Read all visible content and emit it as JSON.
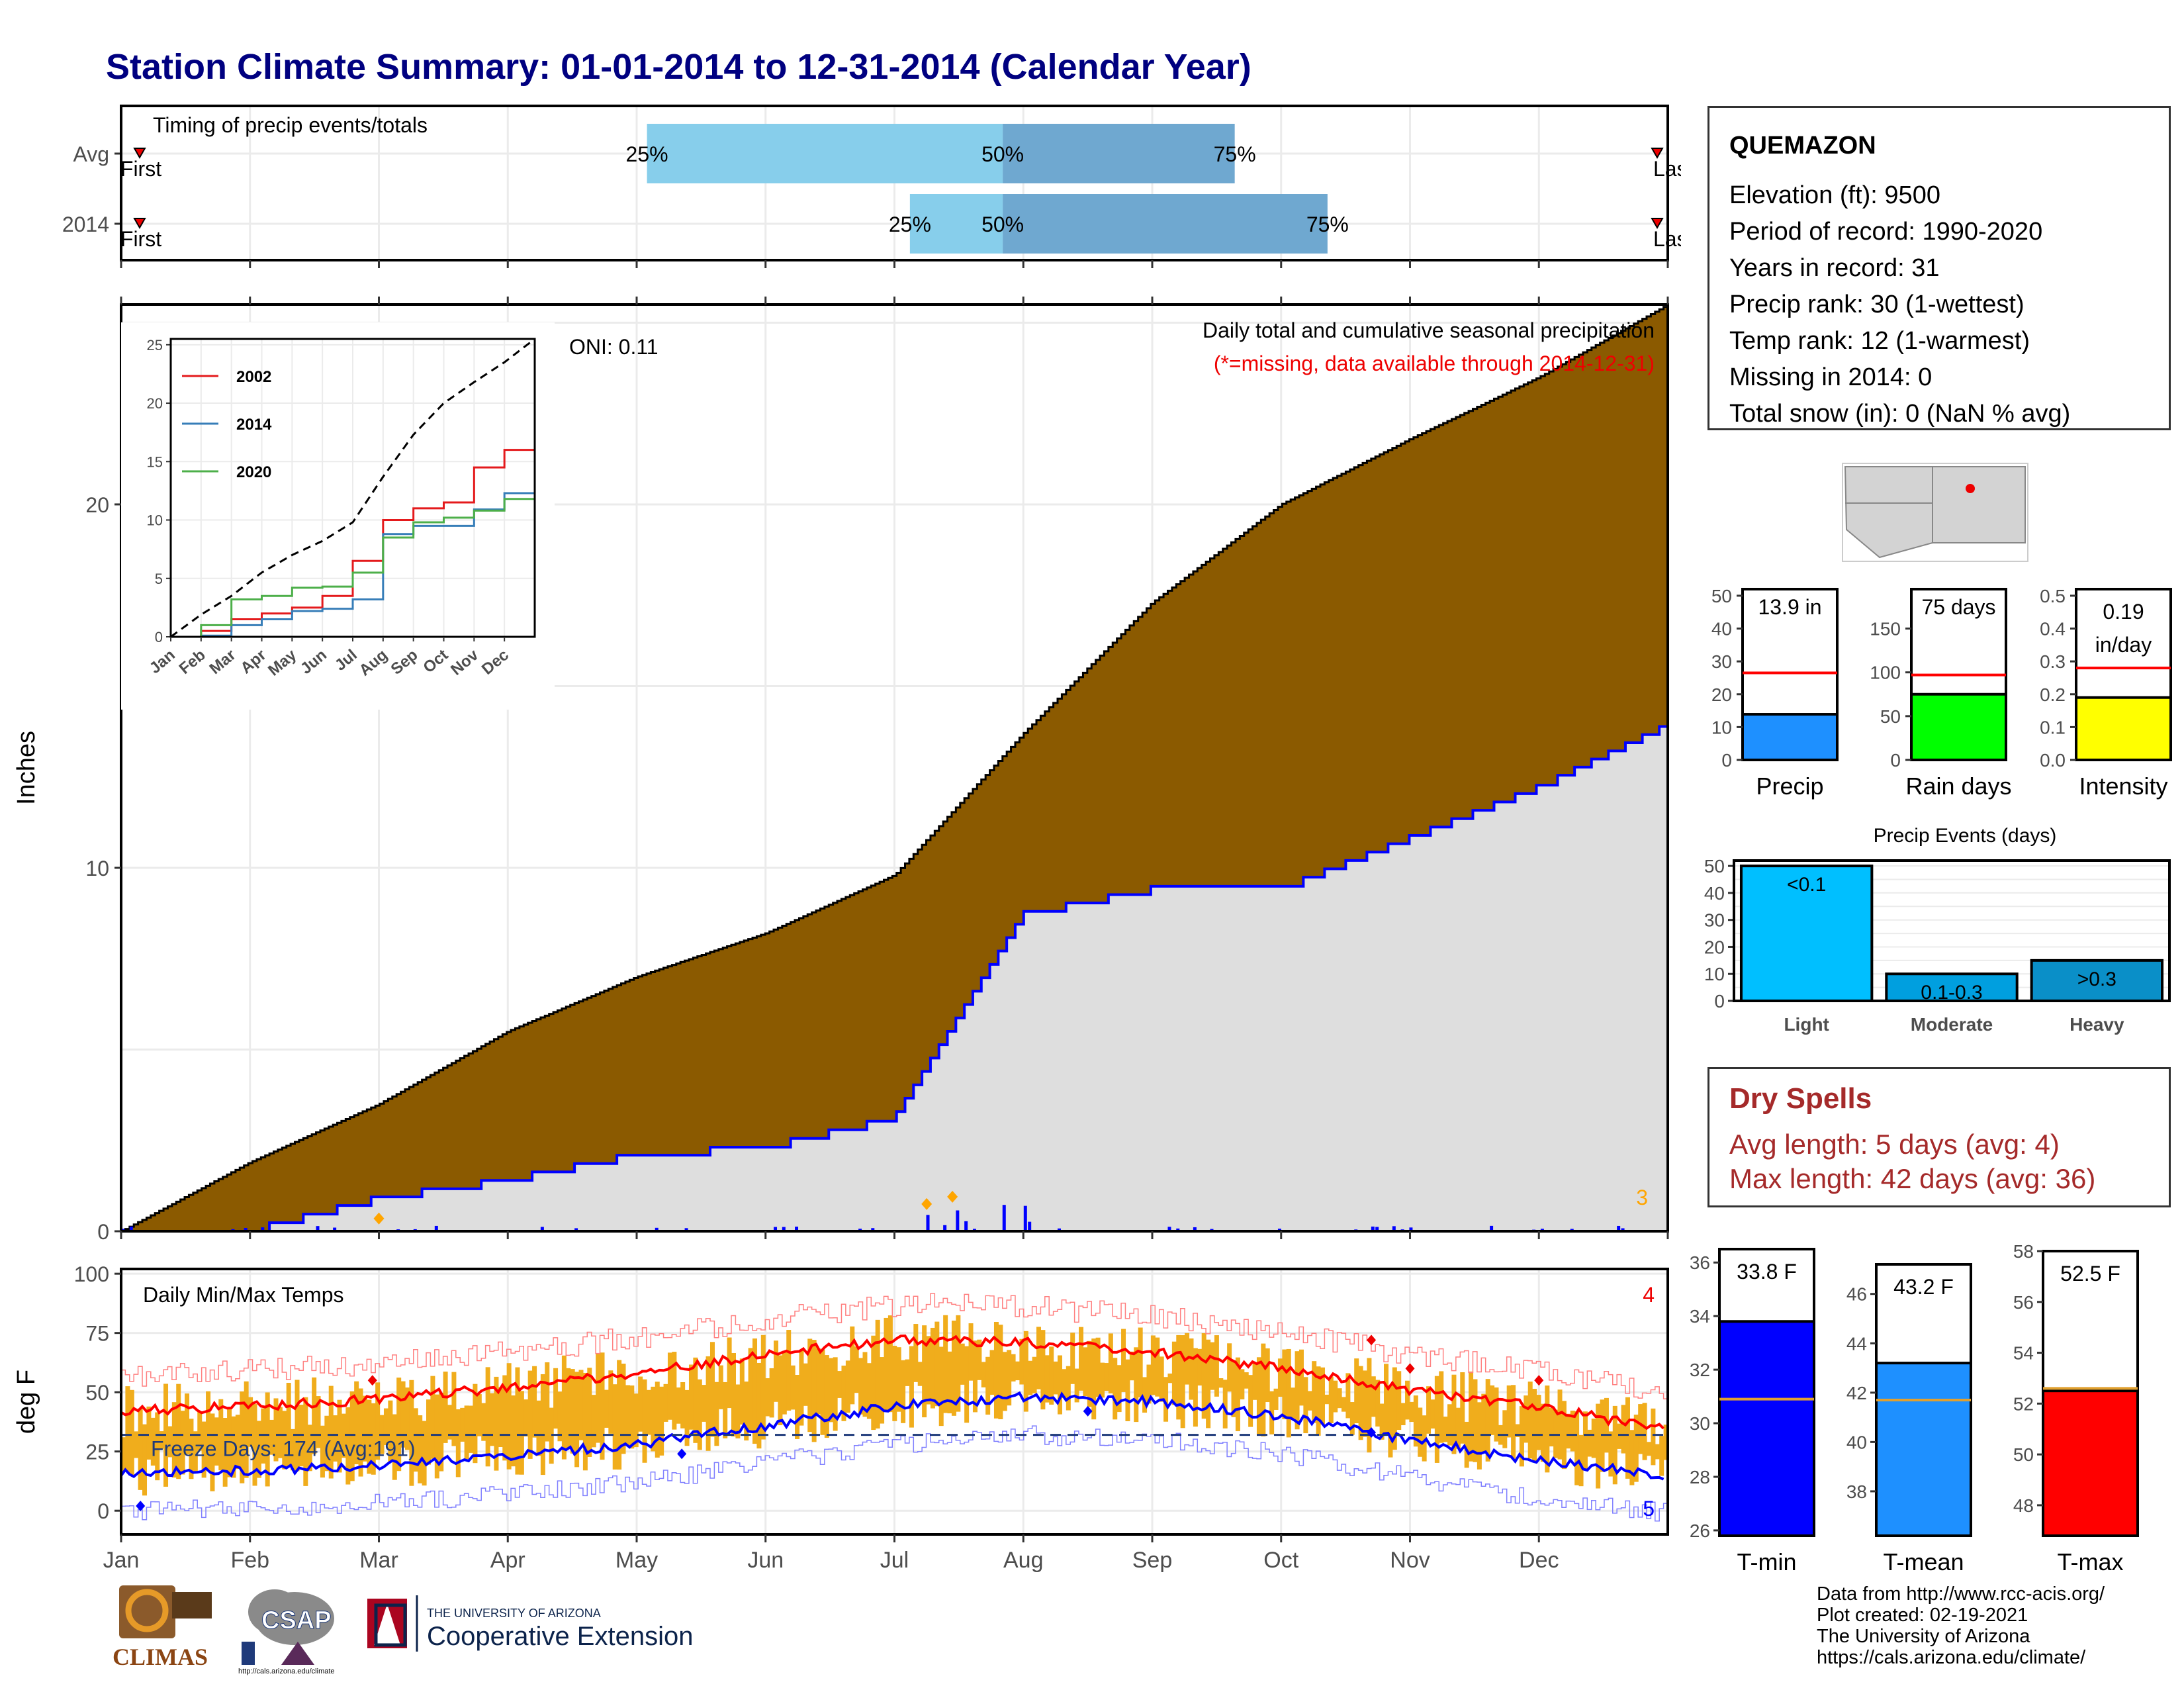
{
  "page": {
    "title": "Station Climate Summary: 01-01-2014 to 12-31-2014 (Calendar Year)"
  },
  "timing": {
    "title": "Timing of precip events/totals",
    "rows": [
      {
        "label": "Avg",
        "first": "First",
        "last": "Last",
        "q25": 0.34,
        "q50": 0.57,
        "q75": 0.72
      },
      {
        "label": "2014",
        "first": "First",
        "last": "Last",
        "q25": 0.51,
        "q50": 0.57,
        "q75": 0.78
      }
    ],
    "pct_labels": [
      "25%",
      "50%",
      "75%"
    ]
  },
  "precip": {
    "ylabel": "Inches",
    "yticks": [
      "0",
      "10",
      "20"
    ],
    "oni": "ONI: 0.11",
    "title": "Daily total and cumulative seasonal precipitation",
    "missing_note": "(*=missing, data available through 2014-12-31)",
    "corner_count": "3",
    "months": [
      "Jan",
      "Feb",
      "Mar",
      "Apr",
      "May",
      "Jun",
      "Jul",
      "Aug",
      "Sep",
      "Oct",
      "Nov",
      "Dec"
    ],
    "inset": {
      "yticks": [
        "0",
        "5",
        "10",
        "15",
        "20",
        "25"
      ],
      "legend": [
        {
          "name": "2002",
          "color": "#e41a1c"
        },
        {
          "name": "2014",
          "color": "#377eb8"
        },
        {
          "name": "2020",
          "color": "#4daf4a"
        }
      ],
      "months": [
        "Jan",
        "Feb",
        "Mar",
        "Apr",
        "May",
        "Jun",
        "Jul",
        "Aug",
        "Sep",
        "Oct",
        "Nov",
        "Dec"
      ]
    }
  },
  "temps": {
    "ylabel": "deg F",
    "title": "Daily Min/Max Temps",
    "freeze": "Freeze Days: 174 (Avg:191)",
    "yticks": [
      "0",
      "25",
      "50",
      "75",
      "100"
    ],
    "count_top": "4",
    "count_bottom": "5",
    "months": [
      "Jan",
      "Feb",
      "Mar",
      "Apr",
      "May",
      "Jun",
      "Jul",
      "Aug",
      "Sep",
      "Oct",
      "Nov",
      "Dec"
    ]
  },
  "station": {
    "name": "QUEMAZON",
    "elevation": "Elevation (ft): 9500",
    "period": "Period of record: 1990-2020",
    "years": "Years in record: 31",
    "precip_rank": "Precip rank: 30 (1-wettest)",
    "temp_rank": "Temp rank: 12 (1-warmest)",
    "missing": "Missing in 2014: 0",
    "snow": "Total snow (in): 0 (NaN % avg)"
  },
  "summary_bars": [
    {
      "label": "Precip",
      "value_text": "13.9 in",
      "value": 13.9,
      "avg": 26.5,
      "ymax": 52,
      "ticks": [
        "0",
        "10",
        "20",
        "30",
        "40",
        "50"
      ],
      "color": "#1e90ff"
    },
    {
      "label": "Rain days",
      "value_text": "75 days",
      "value": 75,
      "avg": 97,
      "ymax": 195,
      "ticks": [
        "0",
        "50",
        "100",
        "150"
      ],
      "color": "#00ff00"
    },
    {
      "label": "Intensity",
      "value_text": "0.19 in/day",
      "value_line1": "0.19",
      "value_line2": "in/day",
      "value": 0.19,
      "avg": 0.28,
      "ymax": 0.52,
      "ticks": [
        "0.0",
        "0.1",
        "0.2",
        "0.3",
        "0.4",
        "0.5"
      ],
      "color": "#ffff00"
    }
  ],
  "precip_events": {
    "title": "Precip Events (days)",
    "yticks": [
      "0",
      "10",
      "20",
      "30",
      "40",
      "50"
    ],
    "bars": [
      {
        "label": "Light",
        "inner": "<0.1",
        "value": 50,
        "color": "#00bfff"
      },
      {
        "label": "Moderate",
        "inner": "0.1-0.3",
        "value": 10,
        "color": "#009fdf"
      },
      {
        "label": "Heavy",
        "inner": ">0.3",
        "value": 15,
        "color": "#0a8fc8"
      }
    ]
  },
  "dry_spells": {
    "title": "Dry Spells",
    "avg": "Avg length: 5 days (avg: 4)",
    "max": "Max length: 42 days (avg: 36)"
  },
  "temp_bars": [
    {
      "label": "T-min",
      "value_text": "33.8 F",
      "value": 33.8,
      "avg": 30.9,
      "ymin": 25.8,
      "ymax": 36.5,
      "ticks": [
        "26",
        "28",
        "30",
        "32",
        "34",
        "36"
      ],
      "tickvals": [
        26,
        28,
        30,
        32,
        34,
        36
      ],
      "color": "#0000ff"
    },
    {
      "label": "T-mean",
      "value_text": "43.2 F",
      "value": 43.2,
      "avg": 41.7,
      "ymin": 36.2,
      "ymax": 47.2,
      "ticks": [
        "38",
        "40",
        "42",
        "44",
        "46"
      ],
      "tickvals": [
        38,
        40,
        42,
        44,
        46
      ],
      "color": "#1e90ff"
    },
    {
      "label": "T-max",
      "value_text": "52.5 F",
      "value": 52.5,
      "avg": 52.6,
      "ymin": 46.8,
      "ymax": 58.0,
      "ticks": [
        "48",
        "50",
        "52",
        "54",
        "56",
        "58"
      ],
      "tickvals": [
        48,
        50,
        52,
        54,
        56,
        58
      ],
      "color": "#ff0000"
    }
  ],
  "footer": {
    "line1": "Data from http://www.rcc-acis.org/",
    "line2": "Plot created: 02-19-2021",
    "line3": "The University of Arizona",
    "line4": "https://cals.arizona.edu/climate/"
  },
  "logos": {
    "climas": "CLIMAS",
    "csap": "CSAP",
    "csap_url": "http://cals.arizona.edu/climate",
    "ua_small": "THE UNIVERSITY OF ARIZONA",
    "ua_big": "Cooperative Extension"
  },
  "chart_data": [
    {
      "type": "area",
      "title": "Daily total and cumulative seasonal precipitation",
      "ylabel": "Inches",
      "ylim": [
        0,
        25.5
      ],
      "series": [
        {
          "name": "Avg",
          "x_months": [
            0,
            1,
            2,
            3,
            4,
            5,
            6,
            7,
            8,
            9,
            10,
            11,
            12
          ],
          "values": [
            0,
            1.9,
            3.5,
            5.5,
            7.0,
            8.2,
            9.8,
            13.7,
            17.3,
            20.0,
            21.8,
            23.5,
            25.5
          ]
        },
        {
          "name": "2014",
          "x_months": [
            0,
            1,
            2,
            3,
            4,
            5,
            6,
            7,
            8,
            9,
            10,
            11,
            12
          ],
          "values": [
            0,
            0.1,
            1.0,
            1.5,
            2.2,
            2.4,
            3.2,
            8.8,
            9.5,
            9.5,
            10.9,
            12.3,
            14.0
          ]
        }
      ]
    },
    {
      "type": "line",
      "title": "Daily Min/Max Temps",
      "ylabel": "deg F",
      "ylim": [
        -10,
        102
      ],
      "series": [
        {
          "name": "Avg max",
          "x_months": [
            0,
            1,
            2,
            3,
            4,
            5,
            6,
            7,
            8,
            9,
            10,
            11,
            12
          ],
          "values": [
            42,
            44,
            47,
            52,
            58,
            66,
            72,
            71,
            67,
            60,
            51,
            44,
            34
          ]
        },
        {
          "name": "Avg min",
          "x_months": [
            0,
            1,
            2,
            3,
            4,
            5,
            6,
            7,
            8,
            9,
            10,
            11,
            12
          ],
          "values": [
            16,
            17,
            19,
            23,
            28,
            36,
            44,
            48,
            46,
            40,
            30,
            21,
            15
          ]
        }
      ],
      "freeze_line": 32
    }
  ]
}
